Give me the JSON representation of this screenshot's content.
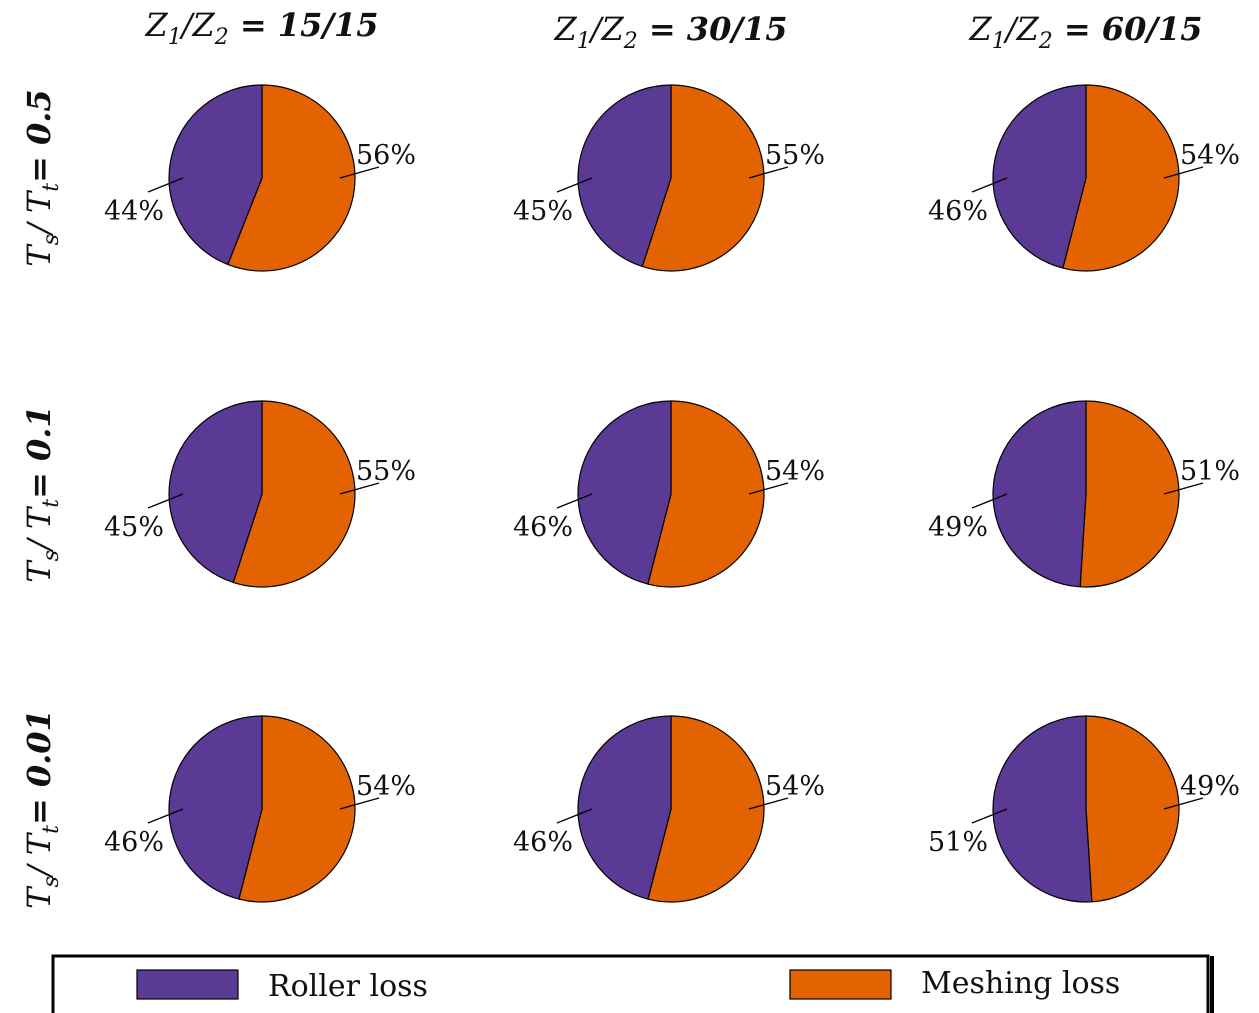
{
  "chart_data": {
    "type": "pie",
    "colors": {
      "Roller loss": "#5b3a96",
      "Meshing loss": "#e36202"
    },
    "columns": [
      {
        "label_prefix": "Z",
        "label_sub1": "1",
        "label_sep": "/Z",
        "label_sub2": "2",
        "label_eq": " = ",
        "label_value": "15/15"
      },
      {
        "label_prefix": "Z",
        "label_sub1": "1",
        "label_sep": "/Z",
        "label_sub2": "2",
        "label_eq": " = ",
        "label_value": "30/15"
      },
      {
        "label_prefix": "Z",
        "label_sub1": "1",
        "label_sep": "/Z",
        "label_sub2": "2",
        "label_eq": " = ",
        "label_value": "60/15"
      }
    ],
    "rows": [
      {
        "label_prefix": "T",
        "label_sub1": "s",
        "label_sep": "/ T",
        "label_sub2": "t",
        "label_eq": "= ",
        "label_value": "0.5"
      },
      {
        "label_prefix": "T",
        "label_sub1": "s",
        "label_sep": "/ T",
        "label_sub2": "t",
        "label_eq": "= ",
        "label_value": "0.1"
      },
      {
        "label_prefix": "T",
        "label_sub1": "s",
        "label_sep": "/ T",
        "label_sub2": "t",
        "label_eq": "= ",
        "label_value": "0.01"
      }
    ],
    "pies": [
      {
        "row": 0,
        "col": 0,
        "slices": [
          {
            "name": "Roller loss",
            "value": 44,
            "label": "44%"
          },
          {
            "name": "Meshing loss",
            "value": 56,
            "label": "56%"
          }
        ]
      },
      {
        "row": 0,
        "col": 1,
        "slices": [
          {
            "name": "Roller loss",
            "value": 45,
            "label": "45%"
          },
          {
            "name": "Meshing loss",
            "value": 55,
            "label": "55%"
          }
        ]
      },
      {
        "row": 0,
        "col": 2,
        "slices": [
          {
            "name": "Roller loss",
            "value": 46,
            "label": "46%"
          },
          {
            "name": "Meshing loss",
            "value": 54,
            "label": "54%"
          }
        ]
      },
      {
        "row": 1,
        "col": 0,
        "slices": [
          {
            "name": "Roller loss",
            "value": 45,
            "label": "45%"
          },
          {
            "name": "Meshing loss",
            "value": 55,
            "label": "55%"
          }
        ]
      },
      {
        "row": 1,
        "col": 1,
        "slices": [
          {
            "name": "Roller loss",
            "value": 46,
            "label": "46%"
          },
          {
            "name": "Meshing loss",
            "value": 54,
            "label": "54%"
          }
        ]
      },
      {
        "row": 1,
        "col": 2,
        "slices": [
          {
            "name": "Roller loss",
            "value": 49,
            "label": "49%"
          },
          {
            "name": "Meshing loss",
            "value": 51,
            "label": "51%"
          }
        ]
      },
      {
        "row": 2,
        "col": 0,
        "slices": [
          {
            "name": "Roller loss",
            "value": 46,
            "label": "46%"
          },
          {
            "name": "Meshing loss",
            "value": 54,
            "label": "54%"
          }
        ]
      },
      {
        "row": 2,
        "col": 1,
        "slices": [
          {
            "name": "Roller loss",
            "value": 46,
            "label": "46%"
          },
          {
            "name": "Meshing loss",
            "value": 54,
            "label": "54%"
          }
        ]
      },
      {
        "row": 2,
        "col": 2,
        "slices": [
          {
            "name": "Roller loss",
            "value": 51,
            "label": "51%"
          },
          {
            "name": "Meshing loss",
            "value": 49,
            "label": "49%"
          }
        ]
      }
    ],
    "legend": {
      "placement": "bottom",
      "entries": [
        {
          "name": "Roller loss"
        },
        {
          "name": "Meshing loss"
        }
      ]
    }
  }
}
